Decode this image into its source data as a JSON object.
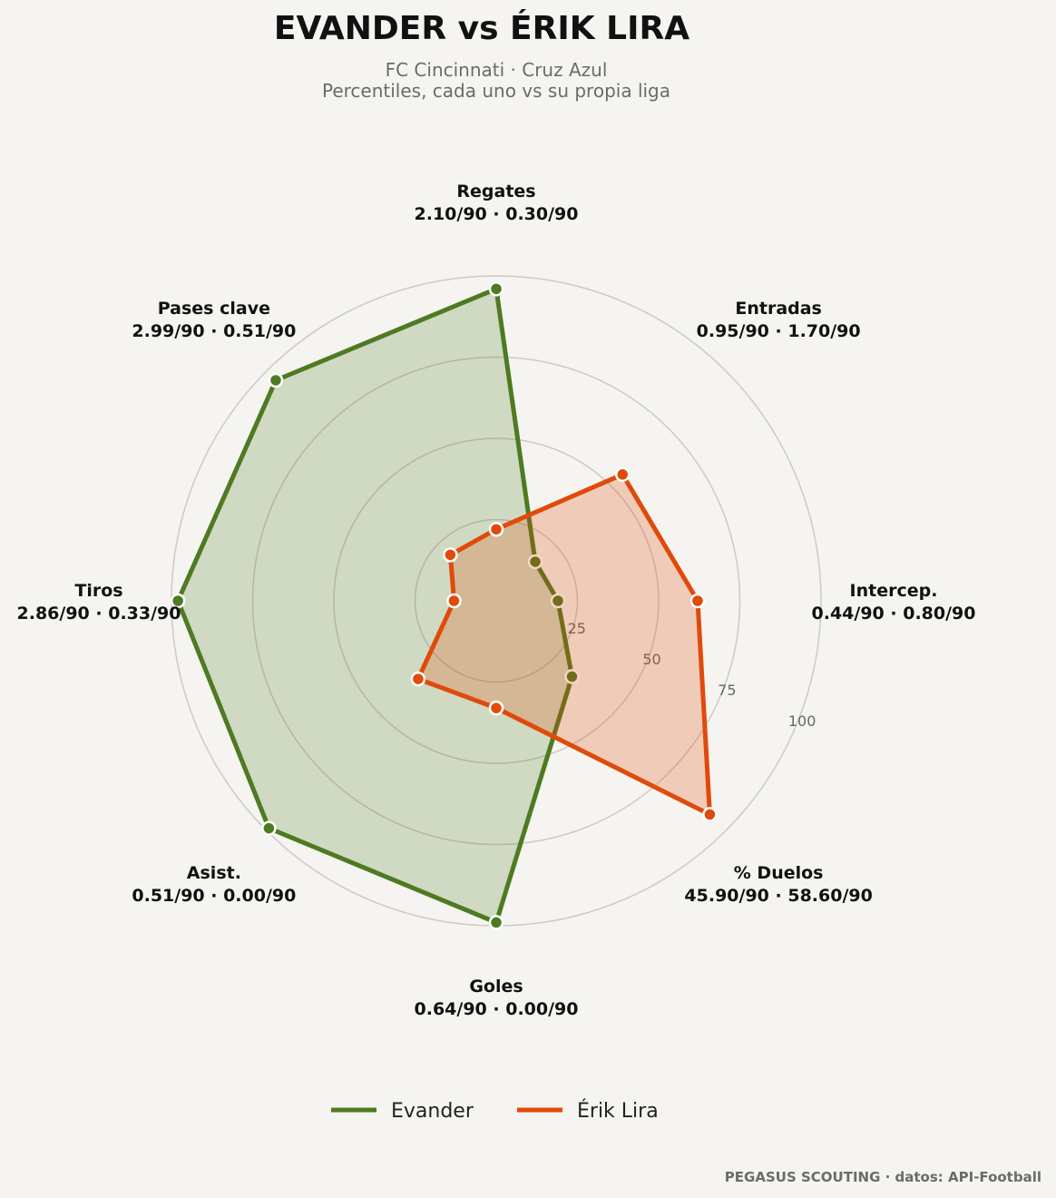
{
  "header": {
    "title": "EVANDER  vs  ÉRIK LIRA",
    "subtitle_line1": "FC Cincinnati · Cruz Azul",
    "subtitle_line2": "Percentiles, cada uno vs su propia liga"
  },
  "credit": "PEGASUS SCOUTING · datos: API-Football",
  "chart_data": {
    "type": "radar",
    "title": "EVANDER  vs  ÉRIK LIRA",
    "range": [
      0,
      100
    ],
    "ticks": [
      25,
      50,
      75,
      100
    ],
    "legend_position": "bottom-center",
    "axes": [
      {
        "name": "Regates",
        "detail": "2.10/90 · 0.30/90"
      },
      {
        "name": "Entradas",
        "detail": "0.95/90 · 1.70/90"
      },
      {
        "name": "Intercep.",
        "detail": "0.44/90 · 0.80/90"
      },
      {
        "name": "% Duelos",
        "detail": "45.90/90 · 58.60/90"
      },
      {
        "name": "Goles",
        "detail": "0.64/90 · 0.00/90"
      },
      {
        "name": "Asist.",
        "detail": "0.51/90 · 0.00/90"
      },
      {
        "name": "Tiros",
        "detail": "2.86/90 · 0.33/90"
      },
      {
        "name": "Pases clave",
        "detail": "2.99/90 · 0.51/90"
      }
    ],
    "series": [
      {
        "name": "Evander",
        "color": "#4e7a22",
        "fill": "rgba(78,122,34,0.22)",
        "values": [
          96,
          17,
          19,
          33,
          99,
          99,
          98,
          96
        ]
      },
      {
        "name": "Érik Lira",
        "color": "#e04a0a",
        "fill": "rgba(224,74,10,0.24)",
        "values": [
          22,
          55,
          62,
          93,
          33,
          34,
          13,
          20
        ]
      }
    ]
  }
}
